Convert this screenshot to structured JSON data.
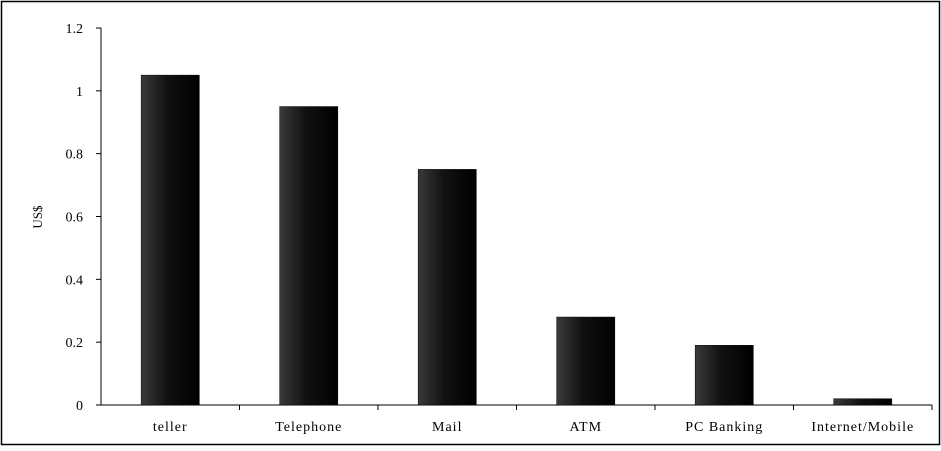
{
  "chart_data": {
    "type": "bar",
    "title": "",
    "xlabel": "",
    "ylabel": "US$",
    "ylim": [
      0,
      1.2
    ],
    "yticks": [
      0,
      0.2,
      0.4,
      0.6,
      0.8,
      1,
      1.2
    ],
    "ytick_labels": [
      "0",
      "0.2",
      "0.4",
      "0.6",
      "0.8",
      "1",
      "1.2"
    ],
    "categories": [
      "teller",
      "Telephone",
      "Mail",
      "ATM",
      "PC Banking",
      "Internet/Mobile"
    ],
    "values": [
      1.05,
      0.95,
      0.75,
      0.28,
      0.19,
      0.02
    ],
    "grid": false,
    "legend": "none",
    "bar_color": "#1a1a1a",
    "frame_color": "#000000"
  }
}
